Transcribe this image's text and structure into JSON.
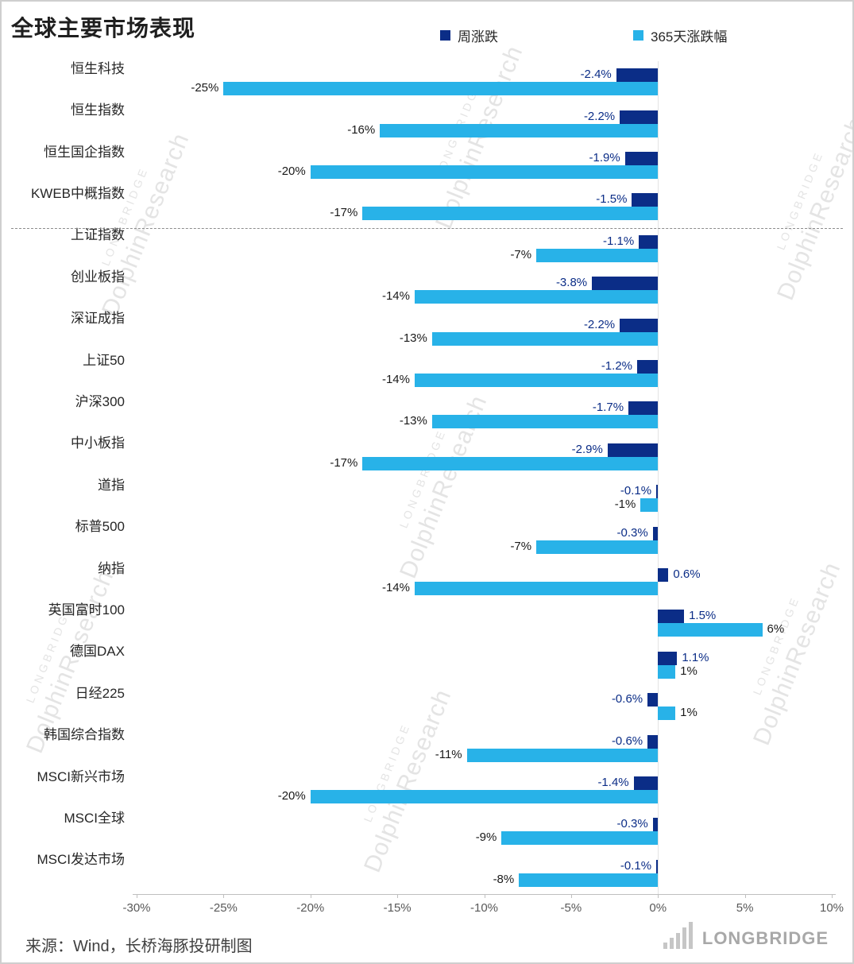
{
  "title": "全球主要市场表现",
  "chart_data": {
    "type": "bar",
    "orientation": "horizontal",
    "title": "全球主要市场表现",
    "xlabel": "",
    "ylabel": "",
    "xlim": [
      -30,
      10
    ],
    "x_tick_labels": [
      "-30%",
      "-25%",
      "-20%",
      "-15%",
      "-10%",
      "-5%",
      "0%",
      "5%",
      "10%"
    ],
    "x_tick_values": [
      -30,
      -25,
      -20,
      -15,
      -10,
      -5,
      0,
      5,
      10
    ],
    "grid": false,
    "legend_position": "top",
    "separator_after_index": 3,
    "categories": [
      "恒生科技",
      "恒生指数",
      "恒生国企指数",
      "KWEB中概指数",
      "上证指数",
      "创业板指",
      "深证成指",
      "上证50",
      "沪深300",
      "中小板指",
      "道指",
      "标普500",
      "纳指",
      "英国富时100",
      "德国DAX",
      "日经225",
      "韩国综合指数",
      "MSCI新兴市场",
      "MSCI全球",
      "MSCI发达市场"
    ],
    "series": [
      {
        "name": "周涨跌",
        "color": "#0b2d87",
        "values": [
          -2.4,
          -2.2,
          -1.9,
          -1.5,
          -1.1,
          -3.8,
          -2.2,
          -1.2,
          -1.7,
          -2.9,
          -0.1,
          -0.3,
          0.6,
          1.5,
          1.1,
          -0.6,
          -0.6,
          -1.4,
          -0.3,
          -0.1
        ],
        "labels": [
          "-2.4%",
          "-2.2%",
          "-1.9%",
          "-1.5%",
          "-1.1%",
          "-3.8%",
          "-2.2%",
          "-1.2%",
          "-1.7%",
          "-2.9%",
          "-0.1%",
          "-0.3%",
          "0.6%",
          "1.5%",
          "1.1%",
          "-0.6%",
          "-0.6%",
          "-1.4%",
          "-0.3%",
          "-0.1%"
        ]
      },
      {
        "name": "365天涨跌幅",
        "color": "#28b2e8",
        "values": [
          -25,
          -16,
          -20,
          -17,
          -7,
          -14,
          -13,
          -14,
          -13,
          -17,
          -1,
          -7,
          -14,
          6,
          1,
          1,
          -11,
          -20,
          -9,
          -8
        ],
        "labels": [
          "-25%",
          "-16%",
          "-20%",
          "-17%",
          "-7%",
          "-14%",
          "-13%",
          "-14%",
          "-13%",
          "-17%",
          "-1%",
          "-7%",
          "-14%",
          "6%",
          "1%",
          "1%",
          "-11%",
          "-20%",
          "-9%",
          "-8%"
        ]
      }
    ]
  },
  "footer": {
    "source": "来源：Wind，长桥海豚投研制图",
    "brand": "LONGBRIDGE"
  },
  "watermark": {
    "small": "LONGBRIDGE",
    "large": "DolphinResearch"
  }
}
